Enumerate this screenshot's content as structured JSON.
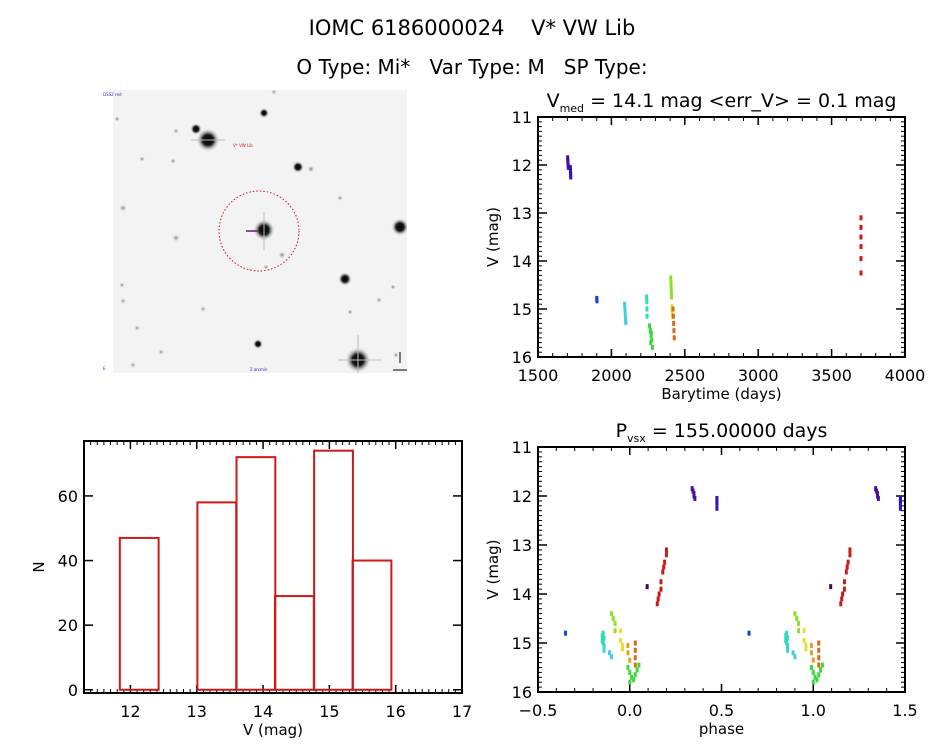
{
  "header": {
    "title": "IOMC 6186000024    V* VW Lib",
    "subtitle": "O Type: Mi*   Var Type: M   SP Type:"
  },
  "finder_image": {
    "corner_label_top_left": "DSS2 red",
    "target_label": "V* VW Lib",
    "bottom_label": "2 arcmin",
    "bottom_left_label": "E",
    "compass": [
      "N",
      "E"
    ]
  },
  "chart_data": [
    {
      "id": "light-curve",
      "type": "scatter",
      "title": "V_med = 14.1 mag <err_V> = 0.1 mag",
      "title_parts": {
        "v": "V",
        "sub": "med",
        "rest": " = 14.1 mag <err_V> = 0.1 mag"
      },
      "xlabel": "Barytime (days)",
      "ylabel": "V (mag)",
      "xlim": [
        1500,
        4000
      ],
      "ylim": [
        16,
        11
      ],
      "y_inverted": true,
      "xticks": [
        1500,
        2000,
        2500,
        3000,
        3500,
        4000
      ],
      "yticks": [
        11,
        12,
        13,
        14,
        15,
        16
      ],
      "series": [
        {
          "name": "s1",
          "color": "#4b0f9a",
          "x": [
            1702,
            1703,
            1704,
            1705,
            1706
          ],
          "y": [
            11.85,
            11.9,
            11.95,
            12.0,
            12.05
          ]
        },
        {
          "name": "s2",
          "color": "#2a13c8",
          "x": [
            1720,
            1721,
            1722,
            1722,
            1723
          ],
          "y": [
            12.05,
            12.1,
            12.15,
            12.2,
            12.25
          ]
        },
        {
          "name": "s3",
          "color": "#1746c4",
          "x": [
            1900,
            1901,
            1902
          ],
          "y": [
            14.78,
            14.8,
            14.83
          ]
        },
        {
          "name": "s4",
          "color": "#3ad0e0",
          "x": [
            2090,
            2092,
            2094,
            2096,
            2098
          ],
          "y": [
            14.9,
            15.0,
            15.1,
            15.2,
            15.28
          ]
        },
        {
          "name": "s5",
          "color": "#2fe0a8",
          "x": [
            2240,
            2241,
            2242,
            2243
          ],
          "y": [
            14.75,
            14.85,
            15.0,
            15.15
          ]
        },
        {
          "name": "s6",
          "color": "#3fd83f",
          "x": [
            2260,
            2265,
            2270,
            2275,
            2280,
            2268,
            2272
          ],
          "y": [
            15.35,
            15.45,
            15.55,
            15.65,
            15.8,
            15.7,
            15.5
          ]
        },
        {
          "name": "s7",
          "color": "#8fe02a",
          "x": [
            2405,
            2406,
            2407,
            2408,
            2410
          ],
          "y": [
            14.35,
            14.45,
            14.55,
            14.65,
            14.75
          ]
        },
        {
          "name": "s8",
          "color": "#e8e030",
          "x": [
            2412,
            2414,
            2416
          ],
          "y": [
            14.95,
            15.05,
            15.15
          ]
        },
        {
          "name": "s9",
          "color": "#d86a18",
          "x": [
            2420,
            2422,
            2424,
            2426,
            2428
          ],
          "y": [
            15.0,
            15.15,
            15.3,
            15.45,
            15.6
          ]
        },
        {
          "name": "s10",
          "color": "#cc1a1a",
          "x": [
            3700,
            3700,
            3700,
            3700,
            3700,
            3700
          ],
          "y": [
            13.1,
            13.3,
            13.5,
            13.7,
            13.95,
            14.25
          ]
        }
      ]
    },
    {
      "id": "histogram",
      "type": "bar",
      "title": "",
      "xlabel": "V (mag)",
      "ylabel": "N",
      "xlim": [
        11.3,
        17
      ],
      "ylim": [
        -1,
        77
      ],
      "xticks": [
        12,
        13,
        14,
        15,
        16,
        17
      ],
      "yticks": [
        0,
        20,
        40,
        60
      ],
      "bin_width": 0.585,
      "bins": [
        {
          "left": 11.84,
          "count": 47
        },
        {
          "left": 12.43,
          "count": 0
        },
        {
          "left": 13.01,
          "count": 58
        },
        {
          "left": 13.6,
          "count": 72
        },
        {
          "left": 14.18,
          "count": 29
        },
        {
          "left": 14.77,
          "count": 74
        },
        {
          "left": 15.35,
          "count": 40
        }
      ],
      "bar_color": "#cc1a1a"
    },
    {
      "id": "phased-curve",
      "type": "scatter",
      "title": "P_vsx = 155.00000 days",
      "title_parts": {
        "v": "P",
        "sub": "vsx",
        "rest": " = 155.00000 days"
      },
      "xlabel": "phase",
      "ylabel": "V (mag)",
      "xlim": [
        -0.5,
        1.5
      ],
      "ylim": [
        16,
        11
      ],
      "y_inverted": true,
      "xticks": [
        -0.5,
        0.0,
        0.5,
        1.0,
        1.5
      ],
      "xtick_labels": [
        "−0.5",
        "0.0",
        "0.5",
        "1.0",
        "1.5"
      ],
      "yticks": [
        11,
        12,
        13,
        14,
        15,
        16
      ],
      "series": [
        {
          "name": "s1",
          "color": "#4b0f9a",
          "x": [
            0.34,
            0.345,
            0.35,
            0.35,
            0.355
          ],
          "y": [
            11.85,
            11.9,
            11.95,
            12.0,
            12.05
          ]
        },
        {
          "name": "s2",
          "color": "#2a13c8",
          "x": [
            0.475,
            0.475,
            0.475,
            0.475
          ],
          "y": [
            12.05,
            12.1,
            12.15,
            12.25
          ]
        },
        {
          "name": "s3",
          "color": "#1746c4",
          "x": [
            -0.35
          ],
          "y": [
            14.8
          ]
        },
        {
          "name": "s4",
          "color": "#3ad0e0",
          "x": [
            -0.15,
            -0.15,
            -0.14,
            -0.14,
            -0.11,
            -0.1
          ],
          "y": [
            14.85,
            14.95,
            15.05,
            15.15,
            15.2,
            15.28
          ]
        },
        {
          "name": "s5",
          "color": "#2fe0a8",
          "x": [
            -0.145,
            -0.14,
            -0.145
          ],
          "y": [
            14.8,
            14.9,
            15.0
          ]
        },
        {
          "name": "s6",
          "color": "#3fd83f",
          "x": [
            -0.01,
            0.0,
            0.01,
            0.02,
            0.04,
            0.05,
            0.0,
            0.03
          ],
          "y": [
            15.5,
            15.6,
            15.7,
            15.75,
            15.55,
            15.45,
            15.8,
            15.65
          ]
        },
        {
          "name": "s7",
          "color": "#8fe02a",
          "x": [
            -0.1,
            -0.09,
            -0.08,
            -0.08
          ],
          "y": [
            14.4,
            14.5,
            14.6,
            14.75
          ]
        },
        {
          "name": "s8",
          "color": "#e8e030",
          "x": [
            -0.05,
            -0.05,
            -0.04,
            -0.04
          ],
          "y": [
            14.75,
            14.95,
            15.05,
            15.12
          ]
        },
        {
          "name": "s9",
          "color": "#e3a020",
          "x": [
            -0.01,
            -0.01,
            0.0
          ],
          "y": [
            15.05,
            15.2,
            15.35
          ]
        },
        {
          "name": "s10",
          "color": "#d86a18",
          "x": [
            0.03,
            0.03,
            0.03,
            0.03
          ],
          "y": [
            15.0,
            15.15,
            15.3,
            15.45
          ]
        },
        {
          "name": "s11",
          "color": "#3a0a5e",
          "x": [
            0.095
          ],
          "y": [
            13.85
          ]
        },
        {
          "name": "s12",
          "color": "#cc1a1a",
          "x": [
            0.15,
            0.155,
            0.16,
            0.17,
            0.17,
            0.18,
            0.185,
            0.19,
            0.2,
            0.2
          ],
          "y": [
            14.2,
            14.1,
            14.0,
            13.9,
            13.75,
            13.55,
            13.45,
            13.35,
            13.2,
            13.1
          ]
        }
      ],
      "repeat_offset": 1.0
    }
  ]
}
